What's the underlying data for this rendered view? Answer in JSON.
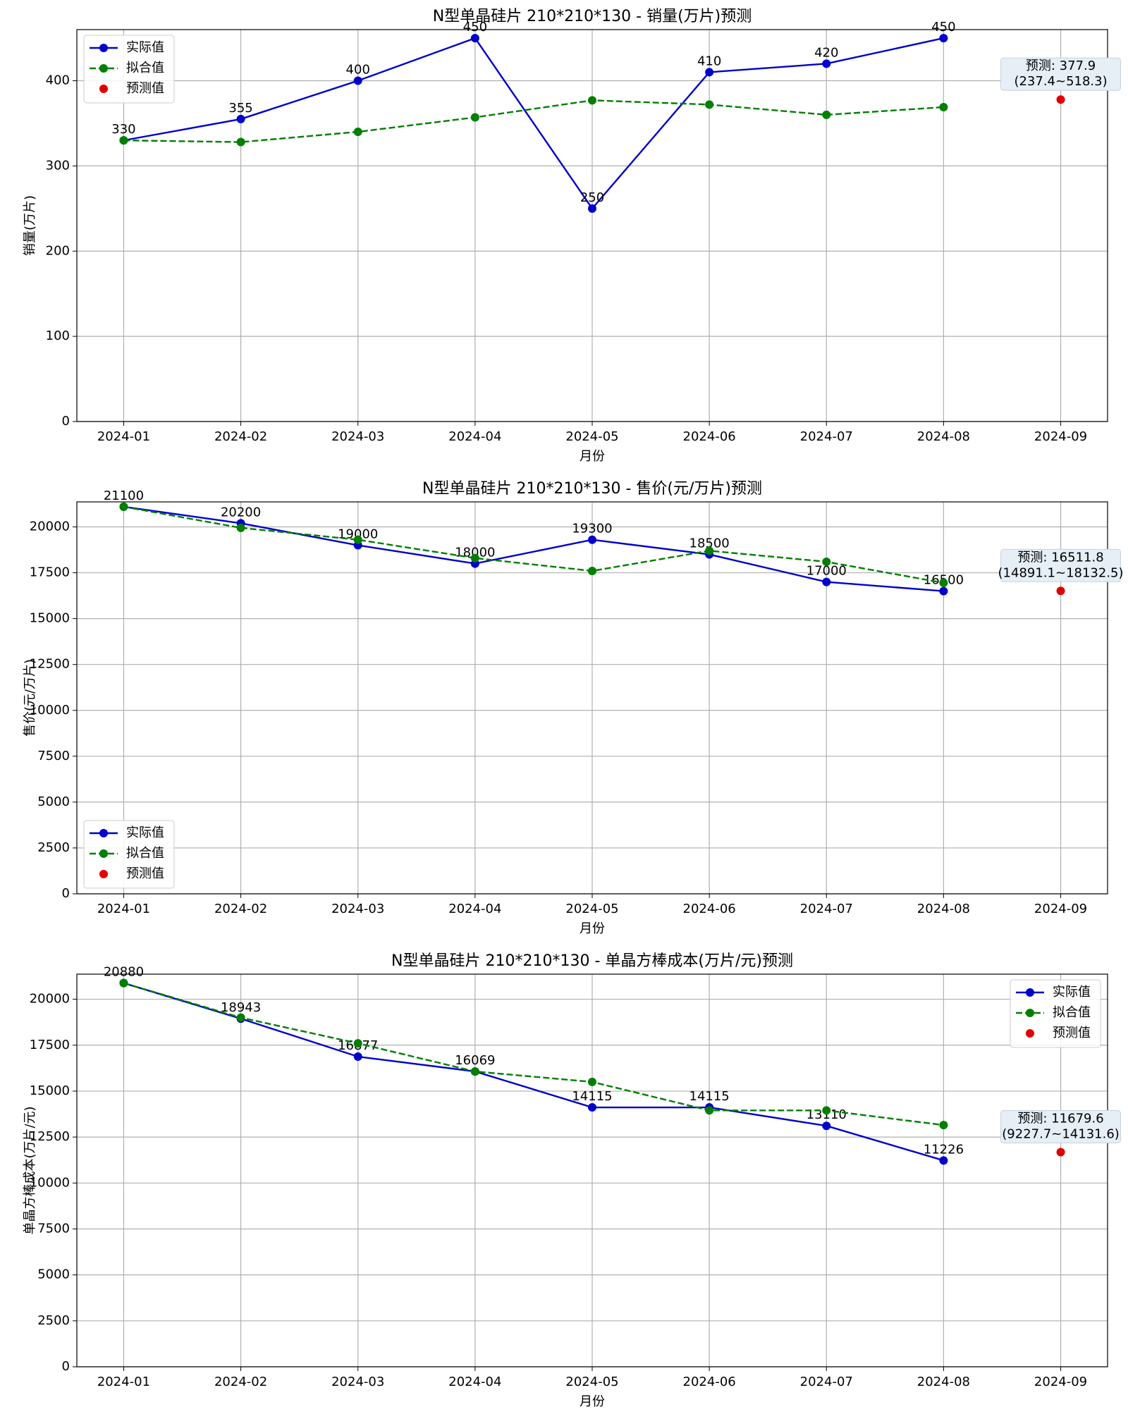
{
  "chart_data": [
    {
      "type": "line",
      "title": "N型单晶硅片 210*210*130 - 销量(万片)预测",
      "xlabel": "月份",
      "ylabel": "销量(万片)",
      "categories": [
        "2024-01",
        "2024-02",
        "2024-03",
        "2024-04",
        "2024-05",
        "2024-06",
        "2024-07",
        "2024-08",
        "2024-09"
      ],
      "series": [
        {
          "name": "实际值",
          "color": "#0000cc",
          "linestyle": "solid",
          "marker": true,
          "labels": true,
          "values": [
            330,
            355,
            400,
            450,
            250,
            410,
            420,
            450,
            null
          ]
        },
        {
          "name": "拟合值",
          "color": "#007f00",
          "linestyle": "dashed",
          "marker": true,
          "values": [
            330,
            328,
            340,
            357,
            377,
            372,
            360,
            369,
            null
          ]
        },
        {
          "name": "预测值",
          "color": "#e00000",
          "linestyle": "none",
          "marker": true,
          "values": [
            null,
            null,
            null,
            null,
            null,
            null,
            null,
            null,
            377.9
          ]
        }
      ],
      "annotation": [
        "预测: 377.9",
        "(237.4~518.3)"
      ],
      "ylim": [
        0,
        460
      ],
      "yticks": [
        0,
        100,
        200,
        300,
        400
      ],
      "grid": true,
      "legend": "upper left"
    },
    {
      "type": "line",
      "title": "N型单晶硅片 210*210*130 - 售价(元/万片)预测",
      "xlabel": "月份",
      "ylabel": "售价(元/万片)",
      "categories": [
        "2024-01",
        "2024-02",
        "2024-03",
        "2024-04",
        "2024-05",
        "2024-06",
        "2024-07",
        "2024-08",
        "2024-09"
      ],
      "series": [
        {
          "name": "实际值",
          "color": "#0000cc",
          "linestyle": "solid",
          "marker": true,
          "labels": true,
          "values": [
            21100,
            20200,
            19000,
            18000,
            19300,
            18500,
            17000,
            16500,
            null
          ]
        },
        {
          "name": "拟合值",
          "color": "#007f00",
          "linestyle": "dashed",
          "marker": true,
          "values": [
            21100,
            19950,
            19300,
            18300,
            17600,
            18700,
            18100,
            16950,
            null
          ]
        },
        {
          "name": "预测值",
          "color": "#e00000",
          "linestyle": "none",
          "marker": true,
          "values": [
            null,
            null,
            null,
            null,
            null,
            null,
            null,
            null,
            16511.8
          ]
        }
      ],
      "annotation": [
        "预测: 16511.8",
        "(14891.1~18132.5)"
      ],
      "ylim": [
        0,
        21365
      ],
      "yticks": [
        0,
        2500,
        5000,
        7500,
        10000,
        12500,
        15000,
        17500,
        20000
      ],
      "grid": true,
      "legend": "lower left"
    },
    {
      "type": "line",
      "title": "N型单晶硅片 210*210*130 - 单晶方棒成本(万片/元)预测",
      "xlabel": "月份",
      "ylabel": "单晶方棒成本(万片/元)",
      "categories": [
        "2024-01",
        "2024-02",
        "2024-03",
        "2024-04",
        "2024-05",
        "2024-06",
        "2024-07",
        "2024-08",
        "2024-09"
      ],
      "series": [
        {
          "name": "实际值",
          "color": "#0000cc",
          "linestyle": "solid",
          "marker": true,
          "labels": true,
          "values": [
            20880,
            18943,
            16877,
            16069,
            14115,
            14115,
            13110,
            11226,
            null
          ]
        },
        {
          "name": "拟合值",
          "color": "#007f00",
          "linestyle": "dashed",
          "marker": true,
          "values": [
            20880,
            19000,
            17600,
            16069,
            15500,
            13950,
            13950,
            13150,
            null
          ]
        },
        {
          "name": "预测值",
          "color": "#e00000",
          "linestyle": "none",
          "marker": true,
          "values": [
            null,
            null,
            null,
            null,
            null,
            null,
            null,
            null,
            11679.6
          ]
        }
      ],
      "annotation": [
        "预测: 11679.6",
        "(9227.7~14131.6)"
      ],
      "ylim": [
        0,
        21365
      ],
      "yticks": [
        0,
        2500,
        5000,
        7500,
        10000,
        12500,
        15000,
        17500,
        20000
      ],
      "grid": true,
      "legend": "upper right"
    }
  ]
}
